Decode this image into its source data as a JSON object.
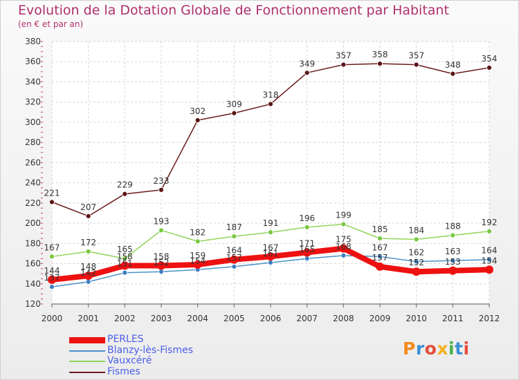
{
  "title": "Evolution de la Dotation Globale de Fonctionnement par Habitant",
  "subtitle": "(en € et par an)",
  "logo": {
    "text": "Proxiti",
    "colors": [
      "#f28c1e",
      "#3a8fd6",
      "#e64c3c",
      "#f2b21e",
      "#49b34a",
      "#3a8fd6",
      "#e64c3c"
    ]
  },
  "chart_data": {
    "type": "line",
    "title": "Evolution de la Dotation Globale de Fonctionnement par Habitant",
    "subtitle": "(en € et par an)",
    "xlabel": "",
    "ylabel": "",
    "x": [
      "2000",
      "2001",
      "2002",
      "2003",
      "2004",
      "2005",
      "2006",
      "2007",
      "2008",
      "2009",
      "2010",
      "2011",
      "2012"
    ],
    "ylim": [
      120,
      380
    ],
    "yticks": [
      120,
      140,
      160,
      180,
      200,
      220,
      240,
      260,
      280,
      300,
      320,
      340,
      360,
      380
    ],
    "grid": true,
    "legend_position": "bottom-left",
    "series": [
      {
        "name": "Blanzy-lès-Fismes",
        "color": "#4a90c8",
        "values": [
          137,
          142,
          151,
          152,
          154,
          157,
          161,
          165,
          168,
          167,
          162,
          163,
          164
        ]
      },
      {
        "name": "Vauxcéré",
        "color": "#8fd45a",
        "values": [
          167,
          172,
          165,
          193,
          182,
          187,
          191,
          196,
          199,
          185,
          184,
          188,
          192
        ]
      },
      {
        "name": "Fismes",
        "color": "#6b1a1a",
        "values": [
          221,
          207,
          229,
          233,
          302,
          309,
          318,
          349,
          357,
          358,
          357,
          348,
          354
        ]
      },
      {
        "name": "PERLES",
        "color": "#ee1111",
        "values": [
          144,
          148,
          158,
          158,
          159,
          164,
          167,
          171,
          175,
          157,
          152,
          153,
          154
        ]
      }
    ],
    "legend_order": [
      "PERLES",
      "Blanzy-lès-Fismes",
      "Vauxcéré",
      "Fismes"
    ]
  }
}
